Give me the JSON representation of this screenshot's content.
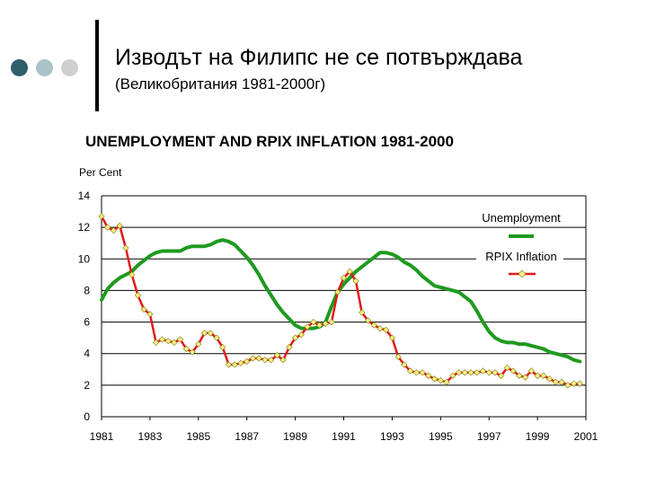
{
  "slide": {
    "title": "Изводът на Филипс не се потвърждава",
    "subtitle": "(Великобритания 1981-2000г)"
  },
  "colors": {
    "bullet_dark": "#2f5f6b",
    "bullet_light": "#a9c3c9",
    "bullet_lighter": "#cfcfcf",
    "divider": "#000000",
    "unemployment": "#1f9a1f",
    "inflation_line": "#e01b1b",
    "inflation_marker": "#f5f08a",
    "inflation_marker_edge": "#8a7a00",
    "grid": "#000000"
  },
  "icons": [
    "bullet-dot-icon",
    "bullet-dot-icon",
    "bullet-dot-icon"
  ],
  "chart_data": {
    "type": "line",
    "title": "UNEMPLOYMENT AND RPIX INFLATION 1981-2000",
    "ylabel": "Per Cent",
    "xlabel": "",
    "ylim": [
      0,
      14
    ],
    "xlim": [
      1981,
      2001
    ],
    "yticks": [
      0,
      2,
      4,
      6,
      8,
      10,
      12,
      14
    ],
    "xticks": [
      "1981",
      "1983",
      "1985",
      "1987",
      "1989",
      "1991",
      "1993",
      "1995",
      "1997",
      "1999",
      "2001"
    ],
    "grid": "horizontal",
    "legend_position": "top-right",
    "series": [
      {
        "name": "Unemployment",
        "x": [
          1981.0,
          1981.25,
          1981.5,
          1981.75,
          1982.0,
          1982.25,
          1982.5,
          1982.75,
          1983.0,
          1983.25,
          1983.5,
          1983.75,
          1984.0,
          1984.25,
          1984.5,
          1984.75,
          1985.0,
          1985.25,
          1985.5,
          1985.75,
          1986.0,
          1986.25,
          1986.5,
          1986.75,
          1987.0,
          1987.25,
          1987.5,
          1987.75,
          1988.0,
          1988.25,
          1988.5,
          1988.75,
          1989.0,
          1989.25,
          1989.5,
          1989.75,
          1990.0,
          1990.25,
          1990.5,
          1990.75,
          1991.0,
          1991.25,
          1991.5,
          1991.75,
          1992.0,
          1992.25,
          1992.5,
          1992.75,
          1993.0,
          1993.25,
          1993.5,
          1993.75,
          1994.0,
          1994.25,
          1994.5,
          1994.75,
          1995.0,
          1995.25,
          1995.5,
          1995.75,
          1996.0,
          1996.25,
          1996.5,
          1996.75,
          1997.0,
          1997.25,
          1997.5,
          1997.75,
          1998.0,
          1998.25,
          1998.5,
          1998.75,
          1999.0,
          1999.25,
          1999.5,
          1999.75,
          2000.0,
          2000.25,
          2000.5,
          2000.75
        ],
        "values": [
          7.4,
          8.1,
          8.5,
          8.8,
          9.0,
          9.2,
          9.6,
          9.9,
          10.2,
          10.4,
          10.5,
          10.5,
          10.5,
          10.5,
          10.7,
          10.8,
          10.8,
          10.8,
          10.9,
          11.1,
          11.2,
          11.1,
          10.9,
          10.5,
          10.1,
          9.6,
          9.0,
          8.3,
          7.7,
          7.1,
          6.6,
          6.2,
          5.8,
          5.6,
          5.6,
          5.6,
          5.7,
          6.0,
          7.0,
          7.9,
          8.4,
          8.8,
          9.2,
          9.5,
          9.8,
          10.1,
          10.4,
          10.4,
          10.3,
          10.1,
          9.8,
          9.6,
          9.3,
          8.9,
          8.6,
          8.3,
          8.2,
          8.1,
          8.0,
          7.9,
          7.6,
          7.3,
          6.7,
          6.0,
          5.4,
          5.0,
          4.8,
          4.7,
          4.7,
          4.6,
          4.6,
          4.5,
          4.4,
          4.3,
          4.1,
          4.0,
          3.9,
          3.8,
          3.6,
          3.5
        ]
      },
      {
        "name": "RPIX Inflation",
        "x": [
          1981.0,
          1981.25,
          1981.5,
          1981.75,
          1982.0,
          1982.25,
          1982.5,
          1982.75,
          1983.0,
          1983.25,
          1983.5,
          1983.75,
          1984.0,
          1984.25,
          1984.5,
          1984.75,
          1985.0,
          1985.25,
          1985.5,
          1985.75,
          1986.0,
          1986.25,
          1986.5,
          1986.75,
          1987.0,
          1987.25,
          1987.5,
          1987.75,
          1988.0,
          1988.25,
          1988.5,
          1988.75,
          1989.0,
          1989.25,
          1989.5,
          1989.75,
          1990.0,
          1990.25,
          1990.5,
          1990.75,
          1991.0,
          1991.25,
          1991.5,
          1991.75,
          1992.0,
          1992.25,
          1992.5,
          1992.75,
          1993.0,
          1993.25,
          1993.5,
          1993.75,
          1994.0,
          1994.25,
          1994.5,
          1994.75,
          1995.0,
          1995.25,
          1995.5,
          1995.75,
          1996.0,
          1996.25,
          1996.5,
          1996.75,
          1997.0,
          1997.25,
          1997.5,
          1997.75,
          1998.0,
          1998.25,
          1998.5,
          1998.75,
          1999.0,
          1999.25,
          1999.5,
          1999.75,
          2000.0,
          2000.25,
          2000.5,
          2000.75
        ],
        "values": [
          12.7,
          12.0,
          11.8,
          12.1,
          10.7,
          9.0,
          7.7,
          6.8,
          6.5,
          4.7,
          4.9,
          4.8,
          4.7,
          4.9,
          4.3,
          4.1,
          4.6,
          5.3,
          5.3,
          5.0,
          4.4,
          3.3,
          3.3,
          3.4,
          3.5,
          3.7,
          3.7,
          3.6,
          3.6,
          3.9,
          3.6,
          4.4,
          5.0,
          5.2,
          5.7,
          6.0,
          5.8,
          5.9,
          6.0,
          7.9,
          8.8,
          9.2,
          8.6,
          6.6,
          6.1,
          5.8,
          5.6,
          5.5,
          5.0,
          3.8,
          3.3,
          2.9,
          2.8,
          2.8,
          2.6,
          2.4,
          2.3,
          2.2,
          2.6,
          2.8,
          2.8,
          2.8,
          2.8,
          2.9,
          2.8,
          2.8,
          2.6,
          3.1,
          2.9,
          2.6,
          2.5,
          2.9,
          2.6,
          2.6,
          2.4,
          2.2,
          2.2,
          2.0,
          2.1,
          2.1
        ]
      }
    ]
  }
}
